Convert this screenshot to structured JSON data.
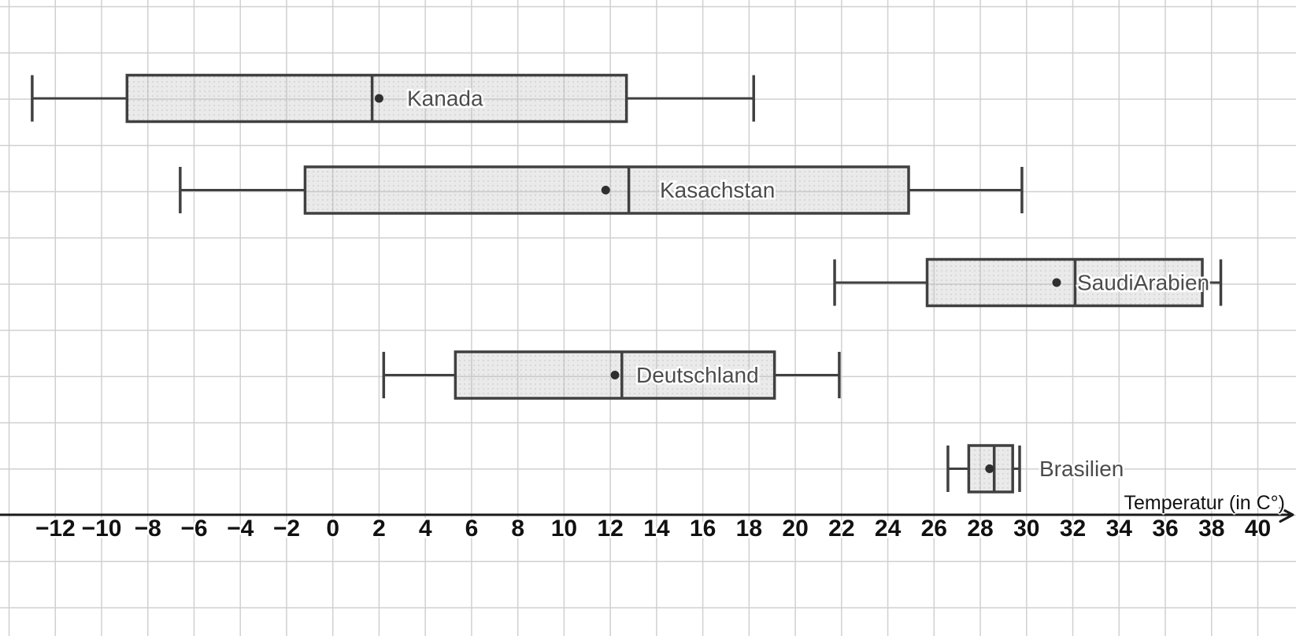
{
  "chart_data": {
    "type": "boxplot",
    "orientation": "horizontal",
    "title": "",
    "xlabel": "Temperatur (in C°)",
    "ylabel": "",
    "grid": true,
    "axis": {
      "title": "Temperatur (in C°)",
      "tick_min": -12,
      "tick_max": 40,
      "tick_step": 2,
      "grid_min": -14,
      "grid_max": 40,
      "tick_values": [
        -12,
        -10,
        -8,
        -6,
        -4,
        -2,
        0,
        2,
        4,
        6,
        8,
        10,
        12,
        14,
        16,
        18,
        20,
        22,
        24,
        26,
        28,
        30,
        32,
        34,
        36,
        38,
        40
      ],
      "tick_labels": [
        "−12",
        "−10",
        "−8",
        "−6",
        "−4",
        "−2",
        "0",
        "2",
        "4",
        "6",
        "8",
        "10",
        "12",
        "14",
        "16",
        "18",
        "20",
        "22",
        "24",
        "26",
        "28",
        "30",
        "32",
        "34",
        "36",
        "38",
        "40"
      ]
    },
    "series": [
      {
        "label": "Kanada",
        "min": -13.0,
        "q1": -8.9,
        "median": 1.7,
        "mean": 2.0,
        "q3": 12.7,
        "max": 18.2
      },
      {
        "label": "Kasachstan",
        "min": -6.6,
        "q1": -1.2,
        "median": 12.8,
        "mean": 11.8,
        "q3": 24.9,
        "max": 29.8
      },
      {
        "label": "SaudiArabien",
        "min": 21.7,
        "q1": 25.7,
        "median": 32.1,
        "mean": 31.3,
        "q3": 37.6,
        "max": 38.4
      },
      {
        "label": "Deutschland",
        "min": 2.2,
        "q1": 5.3,
        "median": 12.5,
        "mean": 12.2,
        "q3": 19.1,
        "max": 21.9
      },
      {
        "label": "Brasilien",
        "min": 26.6,
        "q1": 27.5,
        "median": 28.6,
        "mean": 28.4,
        "q3": 29.4,
        "max": 29.7
      }
    ],
    "colors": {
      "background": "#ffffff",
      "gridline": "#d0d0d0",
      "box_fill": "#ececec",
      "box_border": "#404040",
      "whisker": "#404040",
      "mean_dot": "#2f2f2f",
      "axis_line": "#1a1a1a",
      "tick_label": "#111111",
      "series_label": "#4c4c4c"
    }
  }
}
